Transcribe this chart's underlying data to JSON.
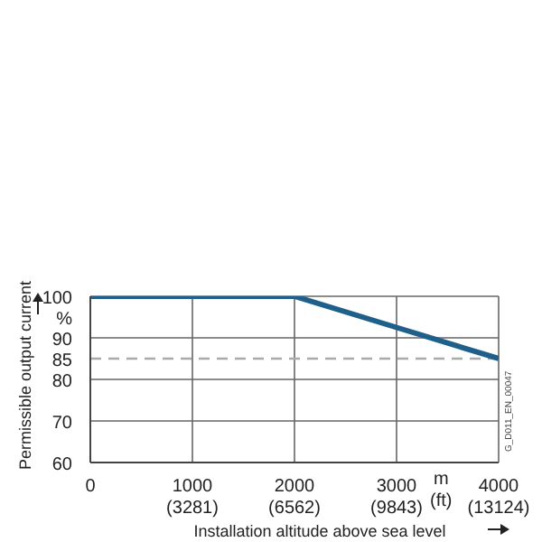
{
  "chart_data": {
    "type": "line",
    "xlabel": "Installation altitude above sea level",
    "ylabel": "Permissible output current",
    "x": [
      0,
      2000,
      3000,
      4000
    ],
    "series": [
      {
        "color": "#1f5f8b",
        "values": [
          100,
          100,
          92.5,
          85
        ]
      }
    ],
    "xlim": [
      0,
      4000
    ],
    "xticks": [
      0,
      1000,
      2000,
      3000,
      4000
    ],
    "x2lim": [
      0,
      13124
    ],
    "x2ticks": [
      {
        "value": 3281,
        "label": "(3281)"
      },
      {
        "value": 6562,
        "label": "(6562)"
      },
      {
        "value": 9843,
        "label": "(9843)"
      },
      {
        "value": 13124,
        "label": "(13124)"
      }
    ],
    "ylim": [
      60,
      100
    ],
    "yticks": [
      60,
      70,
      80,
      85,
      90,
      {
        "value": 95,
        "label": "%"
      },
      100
    ],
    "ref_lines": [
      {
        "axis": "y",
        "value": 85,
        "color": "#aaaaaa",
        "line_style": "dashed"
      }
    ],
    "annotations": [
      "m\n(ft)",
      "G_D011_EN_00047"
    ],
    "grid": true,
    "marker": "none",
    "line_style": "solid"
  }
}
